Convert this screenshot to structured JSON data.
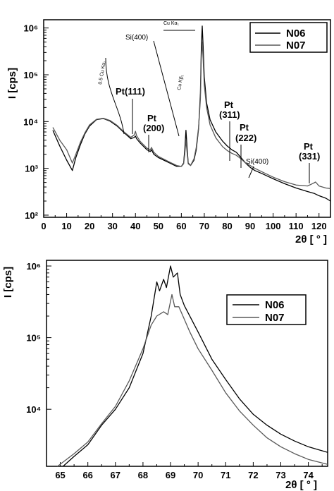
{
  "chart_data": [
    {
      "type": "line",
      "title": "",
      "xlabel": "2θ [ ° ]",
      "ylabel": "I [cps]",
      "xlim": [
        0,
        125
      ],
      "ylim": [
        100,
        1500000
      ],
      "yscale": "log",
      "x_ticks": [
        0,
        10,
        20,
        30,
        40,
        50,
        60,
        70,
        80,
        90,
        100,
        110,
        120
      ],
      "y_ticks": [
        {
          "value": 100,
          "label": "10²"
        },
        {
          "value": 1000,
          "label": "10³"
        },
        {
          "value": 10000,
          "label": "10⁴"
        },
        {
          "value": 100000,
          "label": "10⁵"
        },
        {
          "value": 1000000,
          "label": "10⁶"
        }
      ],
      "grid": false,
      "legend_position": "top-right",
      "series": [
        {
          "name": "N06",
          "color": "#000000",
          "points": [
            [
              4,
              6500
            ],
            [
              7,
              3000
            ],
            [
              10,
              1500
            ],
            [
              12.5,
              900
            ],
            [
              14,
              1700
            ],
            [
              16,
              3200
            ],
            [
              18,
              5500
            ],
            [
              20,
              8000
            ],
            [
              23,
              11000
            ],
            [
              26,
              11600
            ],
            [
              29,
              10200
            ],
            [
              32,
              8000
            ],
            [
              35,
              5800
            ],
            [
              38,
              4300
            ],
            [
              39.5,
              4600
            ],
            [
              40,
              4900
            ],
            [
              40.5,
              4300
            ],
            [
              42,
              3500
            ],
            [
              45,
              2500
            ],
            [
              46.5,
              2300
            ],
            [
              47,
              2500
            ],
            [
              48,
              2000
            ],
            [
              50,
              1700
            ],
            [
              55,
              1300
            ],
            [
              58,
              1100
            ],
            [
              60,
              1100
            ],
            [
              61,
              1300
            ],
            [
              61.5,
              2500
            ],
            [
              62,
              6500
            ],
            [
              62.5,
              2800
            ],
            [
              63,
              1300
            ],
            [
              64,
              1150
            ],
            [
              65.5,
              1500
            ],
            [
              66.5,
              2500
            ],
            [
              67.5,
              7000
            ],
            [
              68.3,
              40000
            ],
            [
              68.7,
              380000
            ],
            [
              69.1,
              1100000
            ],
            [
              69.5,
              400000
            ],
            [
              70,
              90000
            ],
            [
              71,
              25000
            ],
            [
              72.5,
              11000
            ],
            [
              75,
              6000
            ],
            [
              78,
              3800
            ],
            [
              80,
              3000
            ],
            [
              82,
              2500
            ],
            [
              84,
              2200
            ],
            [
              86,
              1700
            ],
            [
              88,
              1300
            ],
            [
              90,
              1050
            ],
            [
              92,
              900
            ],
            [
              95,
              780
            ],
            [
              100,
              600
            ],
            [
              105,
              470
            ],
            [
              110,
              380
            ],
            [
              115,
              320
            ],
            [
              118,
              290
            ],
            [
              120,
              260
            ],
            [
              123,
              230
            ],
            [
              125,
              200
            ]
          ]
        },
        {
          "name": "N07",
          "color": "#595959",
          "points": [
            [
              4,
              7500
            ],
            [
              7,
              4000
            ],
            [
              10,
              2500
            ],
            [
              12.5,
              1300
            ],
            [
              14,
              2000
            ],
            [
              16,
              3600
            ],
            [
              18,
              5800
            ],
            [
              20,
              8500
            ],
            [
              23,
              11200
            ],
            [
              26,
              11800
            ],
            [
              29,
              10500
            ],
            [
              32,
              8300
            ],
            [
              35,
              6000
            ],
            [
              38,
              4600
            ],
            [
              39.5,
              5200
            ],
            [
              40,
              6200
            ],
            [
              40.5,
              5000
            ],
            [
              42,
              3800
            ],
            [
              45,
              2700
            ],
            [
              46.5,
              2500
            ],
            [
              47,
              2800
            ],
            [
              48,
              2200
            ],
            [
              50,
              1800
            ],
            [
              55,
              1350
            ],
            [
              58,
              1150
            ],
            [
              60,
              1100
            ],
            [
              61,
              1250
            ],
            [
              61.5,
              2000
            ],
            [
              62,
              4000
            ],
            [
              62.5,
              2200
            ],
            [
              63,
              1250
            ],
            [
              64,
              1150
            ],
            [
              65.5,
              1600
            ],
            [
              66.5,
              2800
            ],
            [
              67.5,
              7500
            ],
            [
              68.3,
              30000
            ],
            [
              68.7,
              230000
            ],
            [
              69.1,
              500000
            ],
            [
              69.5,
              220000
            ],
            [
              70,
              60000
            ],
            [
              71,
              20000
            ],
            [
              72.5,
              8500
            ],
            [
              75,
              4500
            ],
            [
              78,
              2900
            ],
            [
              80,
              2400
            ],
            [
              82,
              2100
            ],
            [
              84,
              1900
            ],
            [
              86,
              1600
            ],
            [
              88,
              1300
            ],
            [
              90,
              1150
            ],
            [
              92,
              1000
            ],
            [
              95,
              850
            ],
            [
              100,
              650
            ],
            [
              105,
              520
            ],
            [
              110,
              440
            ],
            [
              115,
              420
            ],
            [
              117.5,
              480
            ],
            [
              118.5,
              510
            ],
            [
              120,
              420
            ],
            [
              123,
              380
            ],
            [
              125,
              370
            ]
          ]
        }
      ],
      "annotations": [
        {
          "text": "0.5 Cu Kα₁",
          "style": "tiny"
        },
        {
          "text": "Pt(111)",
          "style": "big"
        },
        {
          "text": "Si(400)",
          "style": "small"
        },
        {
          "text": "Cu Kα₁",
          "style": "tiny"
        },
        {
          "text": "Cu Kβ₁",
          "style": "tiny"
        },
        {
          "text": "Pt",
          "style": "big"
        },
        {
          "text": "(200)",
          "style": "big"
        },
        {
          "text": "Pt",
          "style": "big"
        },
        {
          "text": "(311)",
          "style": "big"
        },
        {
          "text": "Pt",
          "style": "big"
        },
        {
          "text": "(222)",
          "style": "big"
        },
        {
          "text": "Si(400)",
          "style": "small"
        },
        {
          "text": "Pt",
          "style": "big"
        },
        {
          "text": "(331)",
          "style": "big"
        }
      ]
    },
    {
      "type": "line",
      "title": "",
      "xlabel": "2θ [ ° ]",
      "ylabel": "I [cps]",
      "xlim": [
        64.5,
        74.7
      ],
      "ylim": [
        1600,
        1200000
      ],
      "yscale": "log",
      "x_ticks": [
        65,
        66,
        67,
        68,
        69,
        70,
        71,
        72,
        73,
        74
      ],
      "y_ticks": [
        {
          "value": 10000,
          "label": "10⁴"
        },
        {
          "value": 100000,
          "label": "10⁵"
        },
        {
          "value": 1000000,
          "label": "10⁶"
        }
      ],
      "grid": false,
      "legend_position": "top-right",
      "series": [
        {
          "name": "N06",
          "color": "#000000",
          "points": [
            [
              65.1,
              1600
            ],
            [
              65.5,
              2200
            ],
            [
              66,
              3200
            ],
            [
              66.5,
              6000
            ],
            [
              67,
              10000
            ],
            [
              67.5,
              20000
            ],
            [
              68,
              60000
            ],
            [
              68.3,
              200000
            ],
            [
              68.5,
              600000
            ],
            [
              68.6,
              450000
            ],
            [
              68.75,
              650000
            ],
            [
              68.85,
              500000
            ],
            [
              69.0,
              1000000
            ],
            [
              69.1,
              700000
            ],
            [
              69.25,
              800000
            ],
            [
              69.35,
              400000
            ],
            [
              69.5,
              280000
            ],
            [
              70,
              120000
            ],
            [
              70.5,
              50000
            ],
            [
              71,
              26000
            ],
            [
              71.5,
              14000
            ],
            [
              72,
              8500
            ],
            [
              72.5,
              6000
            ],
            [
              73,
              4500
            ],
            [
              73.5,
              3600
            ],
            [
              74,
              3000
            ],
            [
              74.7,
              2500
            ]
          ]
        },
        {
          "name": "N07",
          "color": "#595959",
          "points": [
            [
              64.9,
              1600
            ],
            [
              65.5,
              2400
            ],
            [
              66,
              3500
            ],
            [
              66.5,
              6300
            ],
            [
              67,
              11000
            ],
            [
              67.5,
              25000
            ],
            [
              68,
              70000
            ],
            [
              68.3,
              150000
            ],
            [
              68.5,
              200000
            ],
            [
              68.75,
              230000
            ],
            [
              68.9,
              210000
            ],
            [
              69.05,
              400000
            ],
            [
              69.15,
              270000
            ],
            [
              69.3,
              270000
            ],
            [
              69.45,
              200000
            ],
            [
              69.7,
              120000
            ],
            [
              70,
              70000
            ],
            [
              70.5,
              35000
            ],
            [
              71,
              17000
            ],
            [
              71.5,
              9500
            ],
            [
              72,
              6000
            ],
            [
              72.5,
              4000
            ],
            [
              73,
              3000
            ],
            [
              73.5,
              2400
            ],
            [
              74,
              2000
            ],
            [
              74.7,
              1700
            ]
          ]
        }
      ]
    }
  ]
}
